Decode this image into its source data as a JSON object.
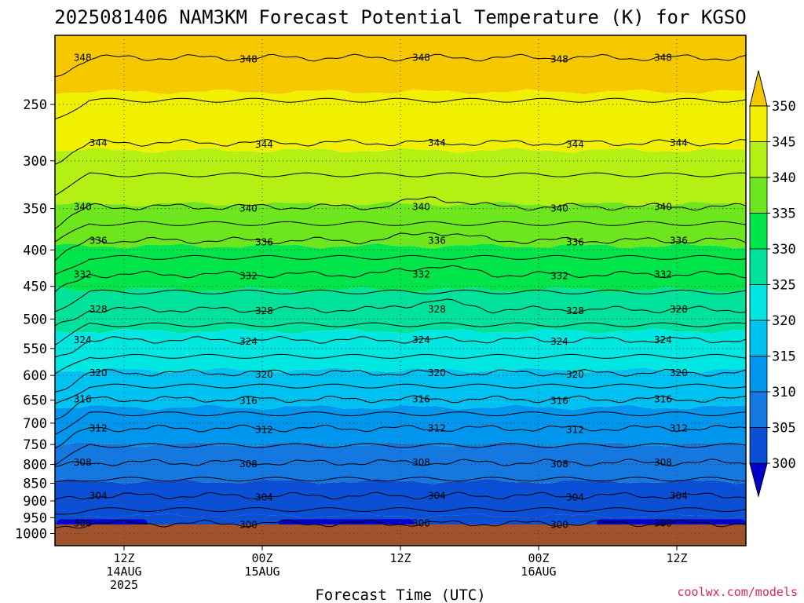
{
  "chart_data": {
    "type": "contour",
    "title": "2025081406 NAM3KM Forecast Potential Temperature (K) for KGSO",
    "xlabel": "Forecast Time (UTC)",
    "ylabel": "",
    "y_ticks": [
      "250",
      "300",
      "350",
      "400",
      "450",
      "500",
      "550",
      "600",
      "650",
      "700",
      "750",
      "800",
      "850",
      "900",
      "950",
      "1000"
    ],
    "x_ticks": [
      {
        "time": "12Z",
        "date": "14AUG",
        "year": "2025"
      },
      {
        "time": "00Z",
        "date": "15AUG",
        "year": ""
      },
      {
        "time": "12Z",
        "date": "",
        "year": ""
      },
      {
        "time": "00Z",
        "date": "16AUG",
        "year": ""
      },
      {
        "time": "12Z",
        "date": "",
        "year": ""
      }
    ],
    "colorbar": {
      "ticks": [
        "300",
        "305",
        "310",
        "315",
        "320",
        "325",
        "330",
        "335",
        "340",
        "345",
        "350"
      ],
      "colors": [
        "#0000cc",
        "#0a4fd6",
        "#1478e0",
        "#0096ee",
        "#00c2f2",
        "#00e6e0",
        "#00e29a",
        "#00e64a",
        "#6ee61e",
        "#b4f014",
        "#f0f000",
        "#f5c800"
      ]
    },
    "contours": [
      {
        "level": 348,
        "label": "348",
        "pressure": 215
      },
      {
        "level": 344,
        "label": "344",
        "pressure": 283
      },
      {
        "level": 340,
        "label": "340",
        "pressure": 348
      },
      {
        "level": 336,
        "label": "336",
        "pressure": 388
      },
      {
        "level": 332,
        "label": "332",
        "pressure": 433
      },
      {
        "level": 328,
        "label": "328",
        "pressure": 485
      },
      {
        "level": 324,
        "label": "324",
        "pressure": 535
      },
      {
        "level": 320,
        "label": "320",
        "pressure": 595
      },
      {
        "level": 316,
        "label": "316",
        "pressure": 648
      },
      {
        "level": 312,
        "label": "312",
        "pressure": 712
      },
      {
        "level": 308,
        "label": "308",
        "pressure": 795
      },
      {
        "level": 304,
        "label": "304",
        "pressure": 885
      },
      {
        "level": 300,
        "label": "300",
        "pressure": 968
      }
    ],
    "credit": "coolwx.com/models"
  }
}
